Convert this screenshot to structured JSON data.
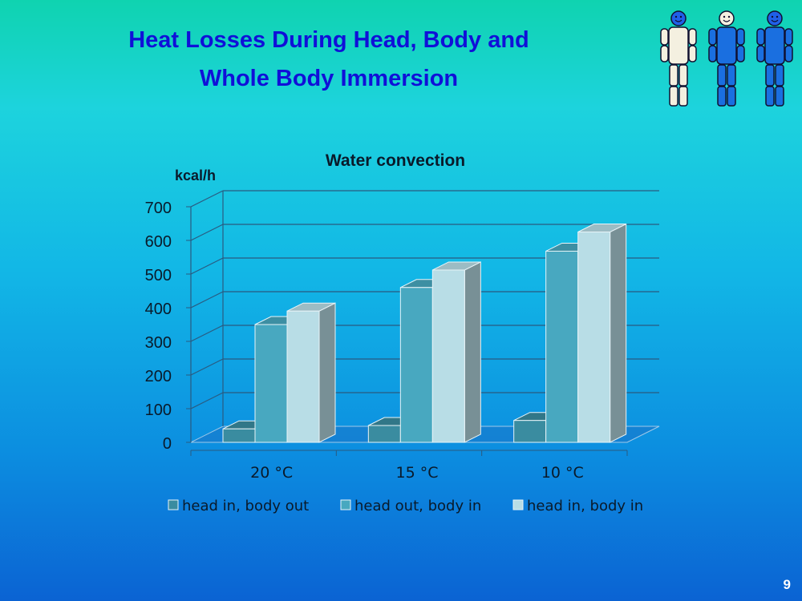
{
  "slide": {
    "title_line1": "Heat Losses During Head, Body and",
    "title_line2": "Whole Body Immersion",
    "page_number": "9"
  },
  "figures": [
    {
      "color": "#f4f0e0",
      "face": "#2060e8"
    },
    {
      "color": "#1a6fe0",
      "face": "#f4f0e0"
    },
    {
      "color": "#1a6fe0",
      "face": "#2060e8"
    }
  ],
  "chart_data": {
    "type": "bar",
    "title": "Water convection",
    "ylabel": "kcal/h",
    "xlabel": "",
    "ylim": [
      0,
      700
    ],
    "yticks": [
      "0",
      "100",
      "200",
      "300",
      "400",
      "500",
      "600",
      "700"
    ],
    "categories": [
      "20 °C",
      "15 °C",
      "10 °C"
    ],
    "series": [
      {
        "name": "head in, body out",
        "values": [
          40,
          50,
          65
        ],
        "color": "#3a8ca0"
      },
      {
        "name": "head out, body in",
        "values": [
          350,
          460,
          568
        ],
        "color": "#48a8c0"
      },
      {
        "name": "head in, body in",
        "values": [
          390,
          512,
          625
        ],
        "color": "#b8dde6"
      }
    ],
    "legend_position": "bottom",
    "grid": true
  }
}
